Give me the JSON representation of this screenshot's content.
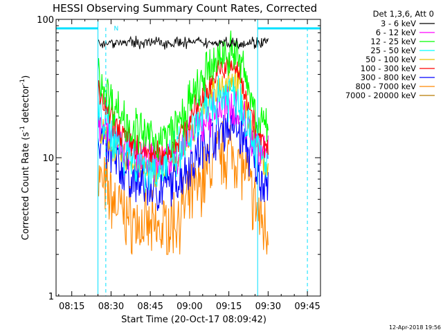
{
  "chart_data": {
    "type": "line",
    "title": "HESSI Observing Summary Count Rates, Corrected",
    "xlabel": "Start Time (20-Oct-17 08:09:42)",
    "ylabel": "Corrected Count Rate (s",
    "ylabel_sup": "-1",
    "ylabel_mid": " detector",
    "ylabel_sup2": "-1",
    "ylabel_end": ")",
    "y_scale": "log",
    "ylim": [
      1,
      100
    ],
    "xlim": [
      "08:09",
      "09:50"
    ],
    "x_ticks": [
      "08:15",
      "08:30",
      "08:45",
      "09:00",
      "09:15",
      "09:30",
      "09:45"
    ],
    "y_ticks": [
      "1",
      "10",
      "100"
    ],
    "legend_title": "Det 1,3,6, Att 0",
    "legend_position": "right",
    "series": [
      {
        "name": "3 - 6 keV",
        "color": "#000000",
        "base": 68,
        "dip": 0,
        "peak": 0
      },
      {
        "name": "6 - 12 keV",
        "color": "#ff00ff",
        "base": 19,
        "dip": 9.5,
        "peak": 24
      },
      {
        "name": "12 - 25 keV",
        "color": "#00ff00",
        "base": 42,
        "dip": 13.5,
        "peak": 58
      },
      {
        "name": "25 - 50 keV",
        "color": "#00ffff",
        "base": 24,
        "dip": 8.5,
        "peak": 30
      },
      {
        "name": "50 - 100 keV",
        "color": "#e8c400",
        "base": 17,
        "dip": 8,
        "peak": 37
      },
      {
        "name": "100 - 300 keV",
        "color": "#ff0000",
        "base": 30,
        "dip": 10.5,
        "peak": 46
      },
      {
        "name": "300 - 800 keV",
        "color": "#0000ff",
        "base": 15,
        "dip": 6,
        "peak": 17
      },
      {
        "name": "800 - 7000 keV",
        "color": "#ff8800",
        "base": 7.5,
        "dip": 3,
        "peak": 11
      },
      {
        "name": "7000 - 20000 keV",
        "color": "#b87a00",
        "base": 0,
        "dip": 0,
        "peak": 0
      }
    ],
    "data_start": "08:25",
    "data_end": "09:30",
    "dip_time": "08:48",
    "peak_time": "09:16",
    "night_intervals": [
      [
        "08:09",
        "08:25"
      ],
      [
        "09:26",
        "09:50"
      ]
    ],
    "saa_markers": [
      "08:28",
      "09:45"
    ],
    "flag_label": "N",
    "flag_color": "#00e0ff",
    "date_stamp": "12-Apr-2018 19:56"
  }
}
